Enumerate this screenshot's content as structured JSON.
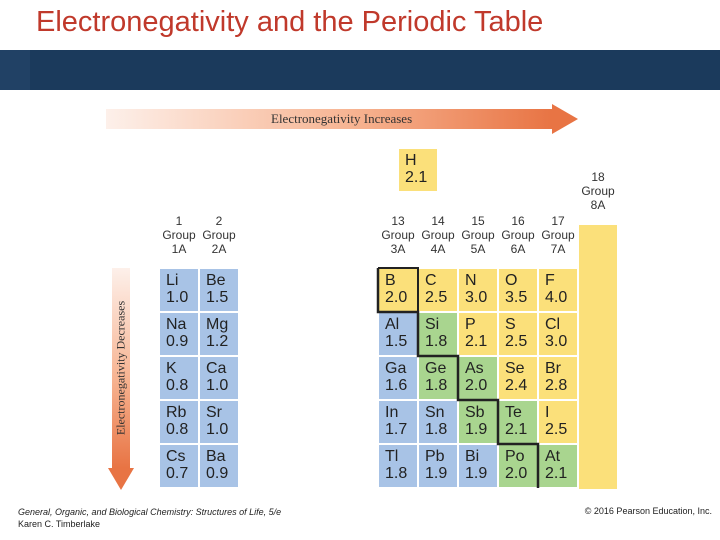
{
  "slide": {
    "title": "Electronegativity and the Periodic Table",
    "arrow_horizontal_label": "Electronegativity Increases",
    "arrow_vertical_label": "Electronegativity Decreases",
    "footer_left_line1": "General, Organic, and Biological Chemistry: Structures of Life, 5/e",
    "footer_left_line2": "Karen C. Timberlake",
    "footer_right": "© 2016 Pearson Education, Inc."
  },
  "groups": {
    "g1": [
      "1",
      "Group",
      "1A"
    ],
    "g2": [
      "2",
      "Group",
      "2A"
    ],
    "g13": [
      "13",
      "Group",
      "3A"
    ],
    "g14": [
      "14",
      "Group",
      "4A"
    ],
    "g15": [
      "15",
      "Group",
      "5A"
    ],
    "g16": [
      "16",
      "Group",
      "6A"
    ],
    "g17": [
      "17",
      "Group",
      "7A"
    ],
    "g18": [
      "18",
      "Group",
      "8A"
    ]
  },
  "elements": {
    "H": {
      "symbol": "H",
      "en": "2.1"
    },
    "Li": {
      "symbol": "Li",
      "en": "1.0"
    },
    "Be": {
      "symbol": "Be",
      "en": "1.5"
    },
    "Na": {
      "symbol": "Na",
      "en": "0.9"
    },
    "Mg": {
      "symbol": "Mg",
      "en": "1.2"
    },
    "K": {
      "symbol": "K",
      "en": "0.8"
    },
    "Ca": {
      "symbol": "Ca",
      "en": "1.0"
    },
    "Rb": {
      "symbol": "Rb",
      "en": "0.8"
    },
    "Sr": {
      "symbol": "Sr",
      "en": "1.0"
    },
    "Cs": {
      "symbol": "Cs",
      "en": "0.7"
    },
    "Ba": {
      "symbol": "Ba",
      "en": "0.9"
    },
    "B": {
      "symbol": "B",
      "en": "2.0"
    },
    "C": {
      "symbol": "C",
      "en": "2.5"
    },
    "N": {
      "symbol": "N",
      "en": "3.0"
    },
    "O": {
      "symbol": "O",
      "en": "3.5"
    },
    "F": {
      "symbol": "F",
      "en": "4.0"
    },
    "Al": {
      "symbol": "Al",
      "en": "1.5"
    },
    "Si": {
      "symbol": "Si",
      "en": "1.8"
    },
    "P": {
      "symbol": "P",
      "en": "2.1"
    },
    "S": {
      "symbol": "S",
      "en": "2.5"
    },
    "Cl": {
      "symbol": "Cl",
      "en": "3.0"
    },
    "Ga": {
      "symbol": "Ga",
      "en": "1.6"
    },
    "Ge": {
      "symbol": "Ge",
      "en": "1.8"
    },
    "As": {
      "symbol": "As",
      "en": "2.0"
    },
    "Se": {
      "symbol": "Se",
      "en": "2.4"
    },
    "Br": {
      "symbol": "Br",
      "en": "2.8"
    },
    "In": {
      "symbol": "In",
      "en": "1.7"
    },
    "Sn": {
      "symbol": "Sn",
      "en": "1.8"
    },
    "Sb": {
      "symbol": "Sb",
      "en": "1.9"
    },
    "Te": {
      "symbol": "Te",
      "en": "2.1"
    },
    "I": {
      "symbol": "I",
      "en": "2.5"
    },
    "Tl": {
      "symbol": "Tl",
      "en": "1.8"
    },
    "Pb": {
      "symbol": "Pb",
      "en": "1.9"
    },
    "Bi": {
      "symbol": "Bi",
      "en": "1.9"
    },
    "Po": {
      "symbol": "Po",
      "en": "2.0"
    },
    "At": {
      "symbol": "At",
      "en": "2.1"
    }
  },
  "colors": {
    "title": "#c0392b",
    "header_bar": "#1b3a5c",
    "metals": "#a8c3e6",
    "metalloids": "#a9d58f",
    "nonmetals": "#fbe07a",
    "arrow": "#e87444"
  }
}
